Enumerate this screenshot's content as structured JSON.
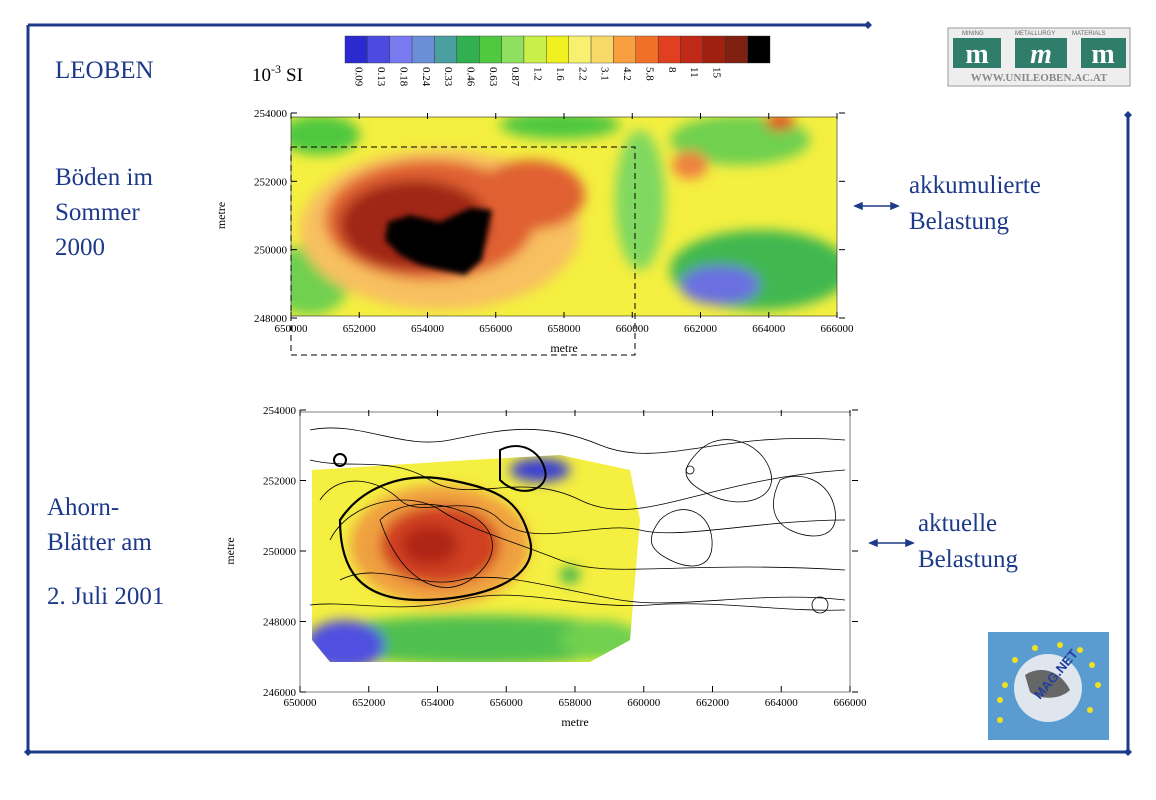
{
  "title": "LEOBEN",
  "unit": {
    "base": "10",
    "exponent": "-3",
    "rest": "SI"
  },
  "colorbar": {
    "colors": [
      "#2a2ad0",
      "#4b4be0",
      "#7a7af0",
      "#6a8ed8",
      "#4aa0a0",
      "#30b050",
      "#50c840",
      "#90e060",
      "#c8f048",
      "#f0f020",
      "#f8f070",
      "#f8d868",
      "#f8a040",
      "#f07028",
      "#e04020",
      "#c02818",
      "#a02010",
      "#802010",
      "#000000"
    ],
    "labels": [
      "0.09",
      "0.13",
      "0.18",
      "0.24",
      "0.33",
      "0.46",
      "0.63",
      "0.87",
      "1.2",
      "1.6",
      "2.2",
      "3.1",
      "4.2",
      "5.8",
      "8",
      "11",
      "15"
    ]
  },
  "top_panel": {
    "left_caption": [
      "Böden im",
      "Sommer",
      "2000"
    ],
    "right_caption": [
      "akkumulierte",
      "Belastung"
    ],
    "map": {
      "xlim": [
        650000,
        666000
      ],
      "ylim": [
        248000,
        254000
      ],
      "xticks": [
        650000,
        652000,
        654000,
        656000,
        658000,
        660000,
        662000,
        664000,
        666000
      ],
      "yticks": [
        248000,
        250000,
        252000,
        254000
      ],
      "xlabel": "metre",
      "ylabel": "metre"
    }
  },
  "bottom_panel": {
    "left_caption": [
      "Ahorn-",
      "Blätter am",
      "2. Juli 2001"
    ],
    "right_caption": [
      "aktuelle",
      "Belastung"
    ],
    "map": {
      "xlim": [
        650000,
        666000
      ],
      "ylim": [
        246000,
        254000
      ],
      "xticks": [
        650000,
        652000,
        654000,
        656000,
        658000,
        660000,
        662000,
        664000,
        666000
      ],
      "yticks": [
        246000,
        248000,
        250000,
        252000,
        254000
      ],
      "xlabel": "metre",
      "ylabel": "metre"
    }
  },
  "logo": {
    "top_labels": [
      "MINING",
      "METALLURGY",
      "MATERIALS"
    ],
    "letters": [
      "m",
      "m",
      "m"
    ],
    "url": "WWW.UNILEOBEN.AC.AT"
  },
  "badge": "MAG.NET"
}
